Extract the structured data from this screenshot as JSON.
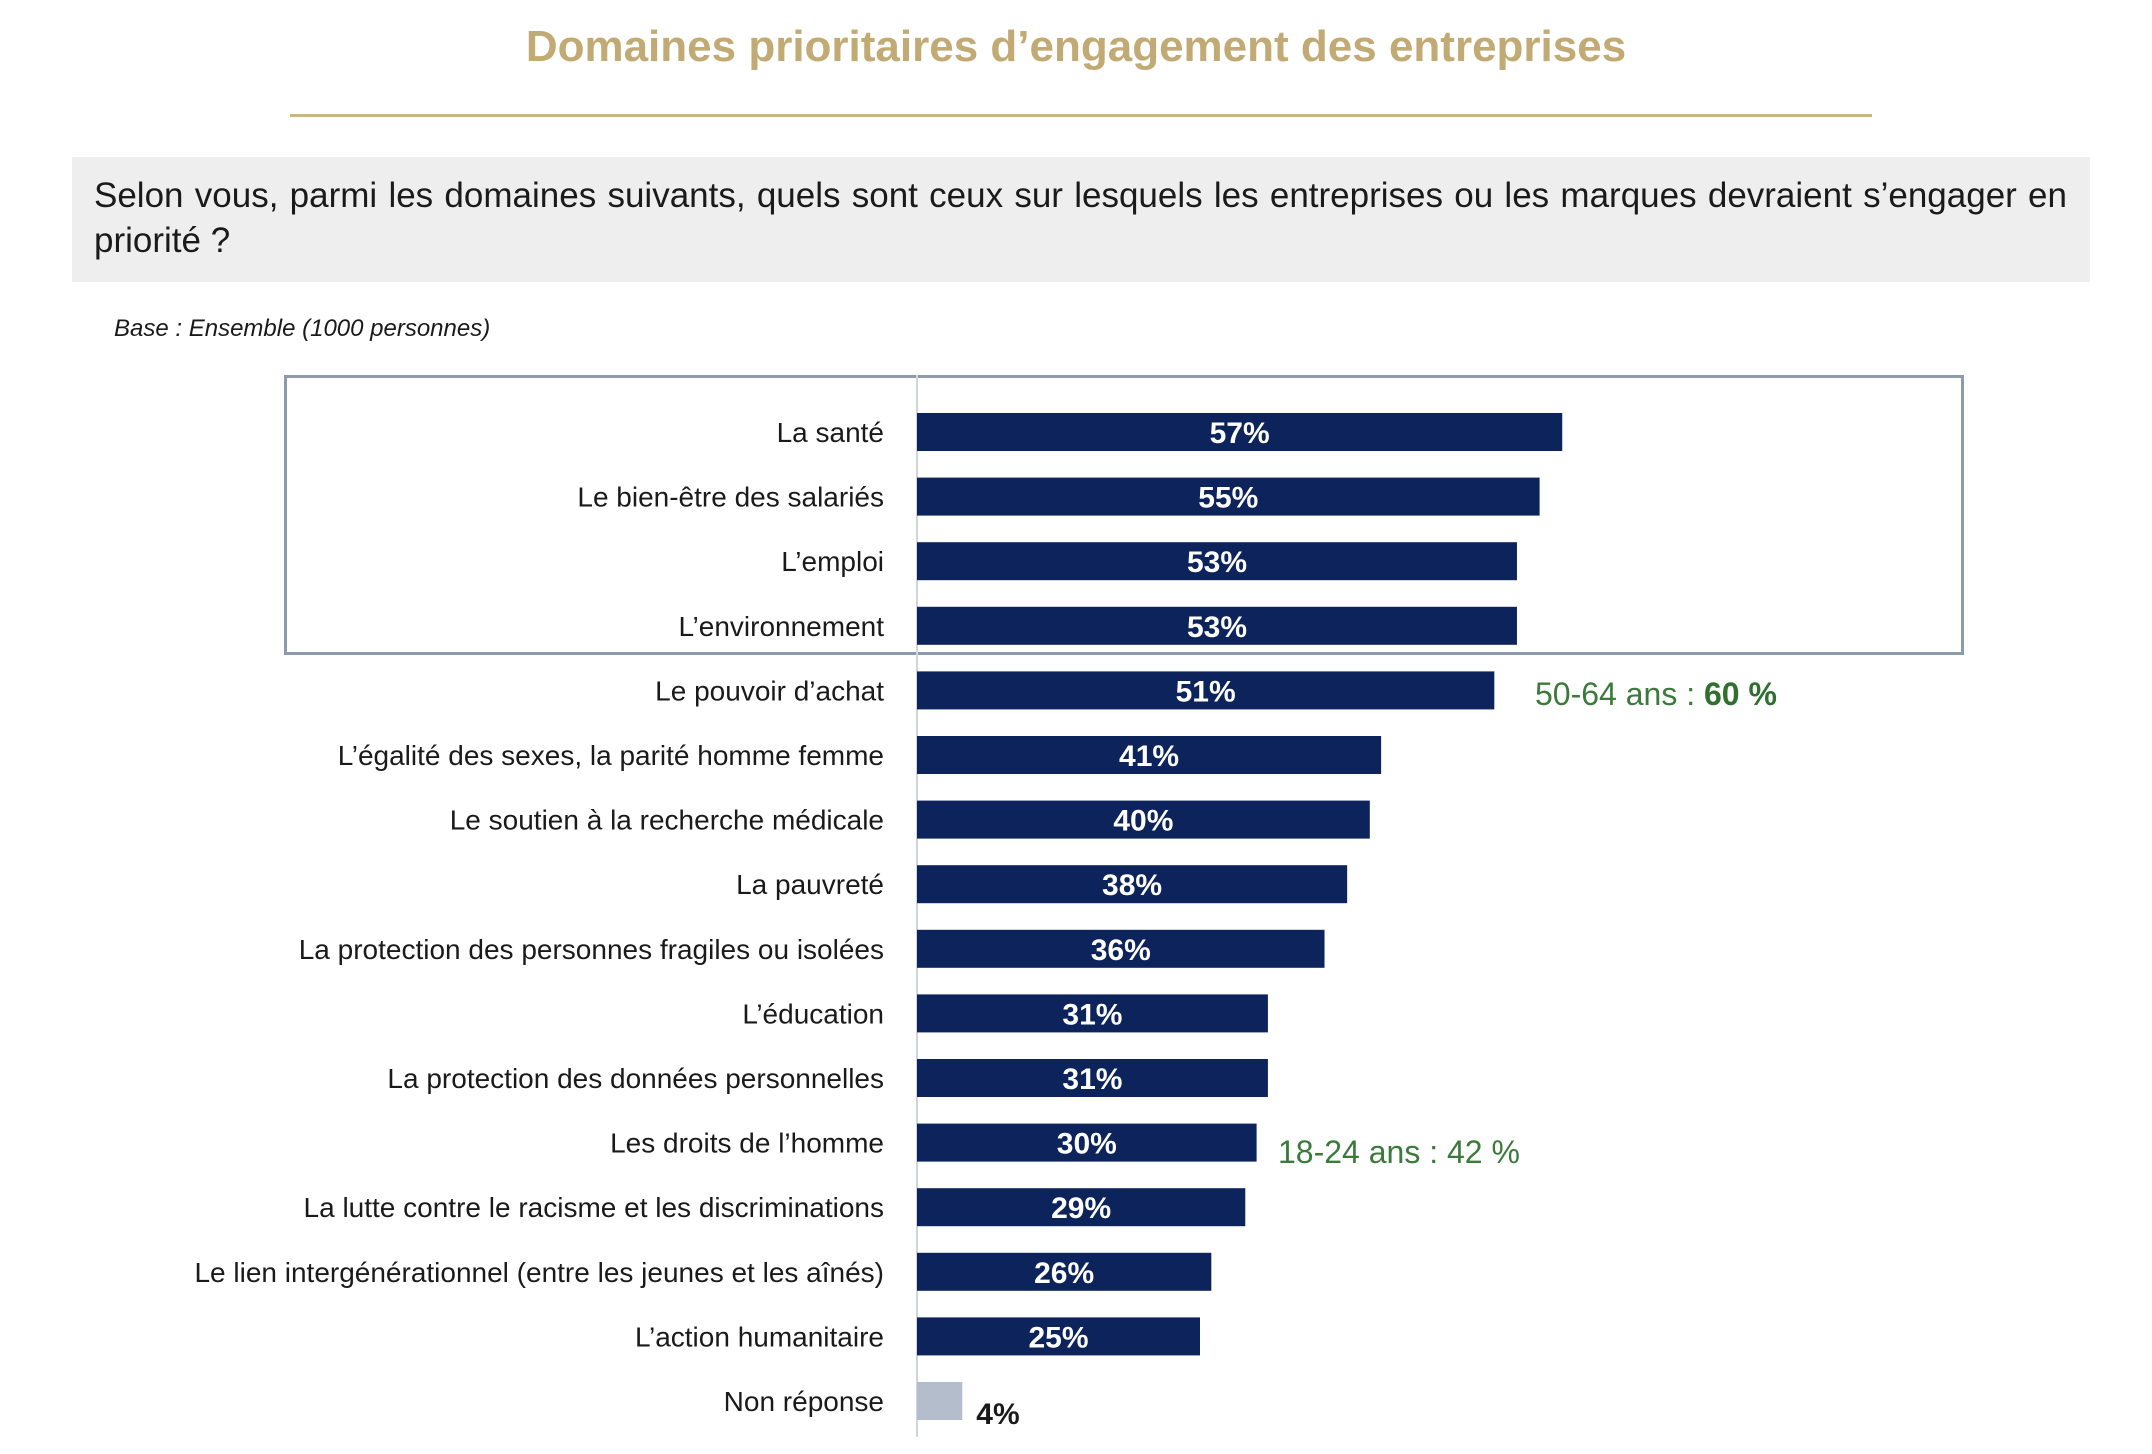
{
  "header": {
    "title": "Domaines prioritaires d’engagement des entreprises",
    "question": "Selon vous, parmi les domaines suivants, quels sont ceux sur lesquels les entreprises ou les marques devraient s’engager en priorité ?",
    "base": "Base : Ensemble (1000 personnes)"
  },
  "annotations": {
    "pouvoir_achat": {
      "prefix": "50-64 ans : ",
      "value": "60 %"
    },
    "droits_homme": {
      "text": "18-24 ans : 42 %"
    }
  },
  "colors": {
    "bar": "#0c235b",
    "bar_nonresponse": "#b4bdcc",
    "title": "#c2aa74",
    "note": "#3b7a3b"
  },
  "chart_data": {
    "type": "bar",
    "orientation": "horizontal",
    "categories": [
      "La santé",
      "Le bien-être des salariés",
      "L’emploi",
      "L’environnement",
      "Le pouvoir d’achat",
      "L’égalité des sexes, la parité homme femme",
      "Le soutien à la recherche médicale",
      "La pauvreté",
      "La protection des personnes fragiles ou isolées",
      "L’éducation",
      "La protection des données personnelles",
      "Les droits de l’homme",
      "La lutte contre le racisme et les discriminations",
      "Le lien intergénérationnel (entre les jeunes et les aînés)",
      "L’action humanitaire",
      "Non réponse"
    ],
    "values": [
      57,
      55,
      53,
      53,
      51,
      41,
      40,
      38,
      36,
      31,
      31,
      30,
      29,
      26,
      25,
      4
    ],
    "value_labels": [
      "57%",
      "55%",
      "53%",
      "53%",
      "51%",
      "41%",
      "40%",
      "38%",
      "36%",
      "31%",
      "31%",
      "30%",
      "29%",
      "26%",
      "25%",
      "4%"
    ],
    "unit": "%",
    "xlim": [
      0,
      100
    ],
    "highlighted_top": 4,
    "grid": false,
    "legend": "none"
  }
}
